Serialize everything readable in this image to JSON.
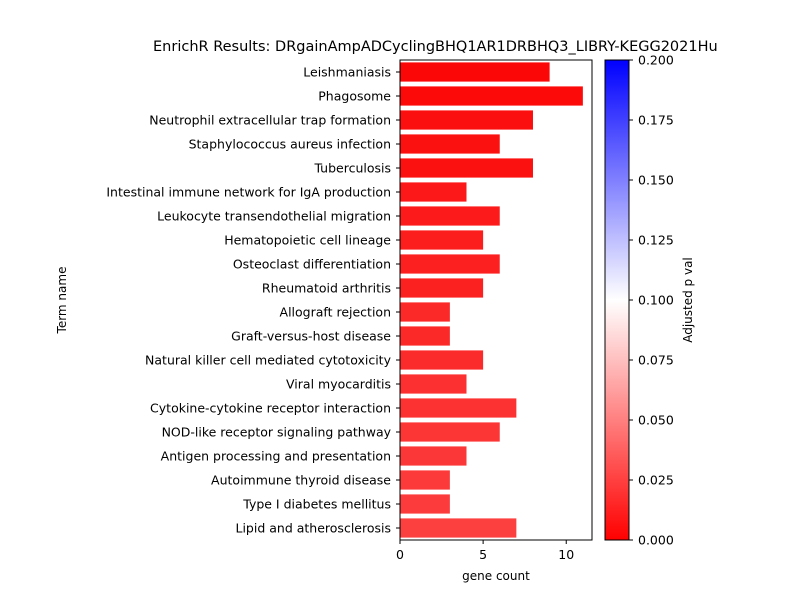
{
  "chart_data": {
    "type": "bar",
    "orientation": "horizontal",
    "title": "EnrichR Results: DRgainAmpADCyclingBHQ1AR1DRBHQ3_LIBRY-KEGG2021Hu",
    "xlabel": "gene count",
    "ylabel": "Term name",
    "xlim": [
      0,
      11.55
    ],
    "xticks": [
      0,
      5,
      10
    ],
    "categories": [
      "Leishmaniasis",
      "Phagosome",
      "Neutrophil extracellular trap formation",
      "Staphylococcus aureus infection",
      "Tuberculosis",
      "Intestinal immune network for IgA production",
      "Leukocyte transendothelial migration",
      "Hematopoietic cell lineage",
      "Osteoclast differentiation",
      "Rheumatoid arthritis",
      "Allograft rejection",
      "Graft-versus-host disease",
      "Natural killer cell mediated cytotoxicity",
      "Viral myocarditis",
      "Cytokine-cytokine receptor interaction",
      "NOD-like receptor signaling pathway",
      "Antigen processing and presentation",
      "Autoimmune thyroid disease",
      "Type I diabetes mellitus",
      "Lipid and atherosclerosis"
    ],
    "values": [
      9,
      11,
      8,
      6,
      8,
      4,
      6,
      5,
      6,
      5,
      3,
      3,
      5,
      4,
      7,
      6,
      4,
      3,
      3,
      7
    ],
    "adjusted_p": [
      0.002,
      0.003,
      0.005,
      0.006,
      0.006,
      0.009,
      0.01,
      0.011,
      0.012,
      0.013,
      0.016,
      0.016,
      0.017,
      0.019,
      0.02,
      0.021,
      0.022,
      0.023,
      0.024,
      0.025
    ],
    "colorbar": {
      "label": "Adjusted p val",
      "range": [
        0,
        0.2
      ],
      "ticks": [
        "0.000",
        "0.025",
        "0.050",
        "0.075",
        "0.100",
        "0.125",
        "0.150",
        "0.175",
        "0.200"
      ],
      "colors": [
        "#ff0000",
        "#ffffff",
        "#0000ff"
      ]
    }
  }
}
